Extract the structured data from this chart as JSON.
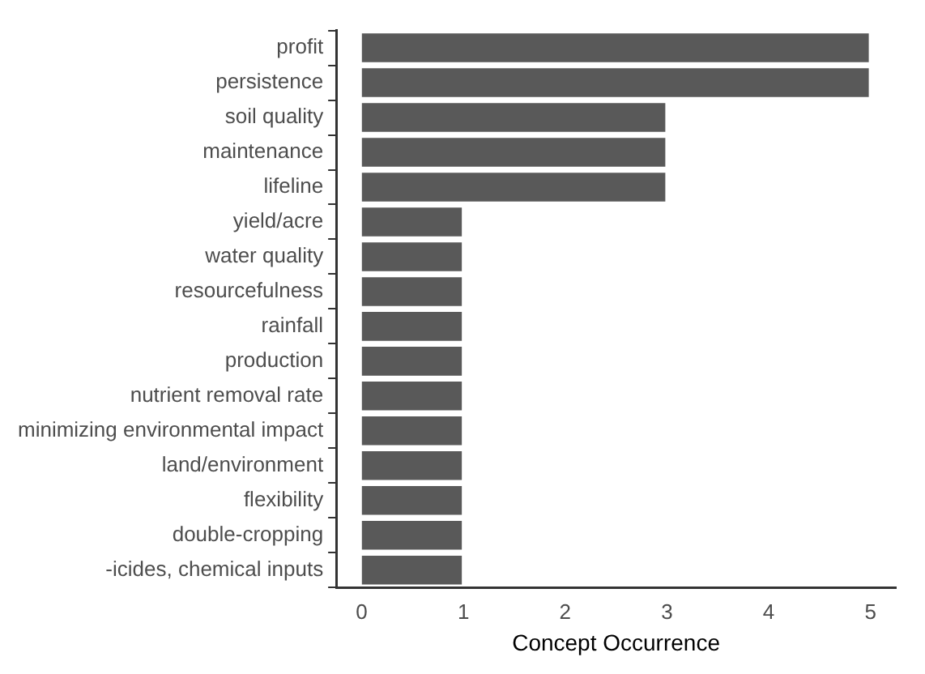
{
  "chart_data": {
    "type": "bar",
    "orientation": "horizontal",
    "xlabel": "Concept Occurrence",
    "categories": [
      "profit",
      "persistence",
      "soil quality",
      "maintenance",
      "lifeline",
      "yield/acre",
      "water quality",
      "resourcefulness",
      "rainfall",
      "production",
      "nutrient removal rate",
      "minimizing environmental impact",
      "land/environment",
      "flexibility",
      "double-cropping",
      "-icides, chemical inputs"
    ],
    "values": [
      5,
      5,
      3,
      3,
      3,
      1,
      1,
      1,
      1,
      1,
      1,
      1,
      1,
      1,
      1,
      1
    ],
    "color": "#595959",
    "xlim": [
      -0.25,
      5.25
    ],
    "xticks": [
      0,
      1,
      2,
      3,
      4,
      5
    ],
    "grid": false,
    "legend": false
  }
}
